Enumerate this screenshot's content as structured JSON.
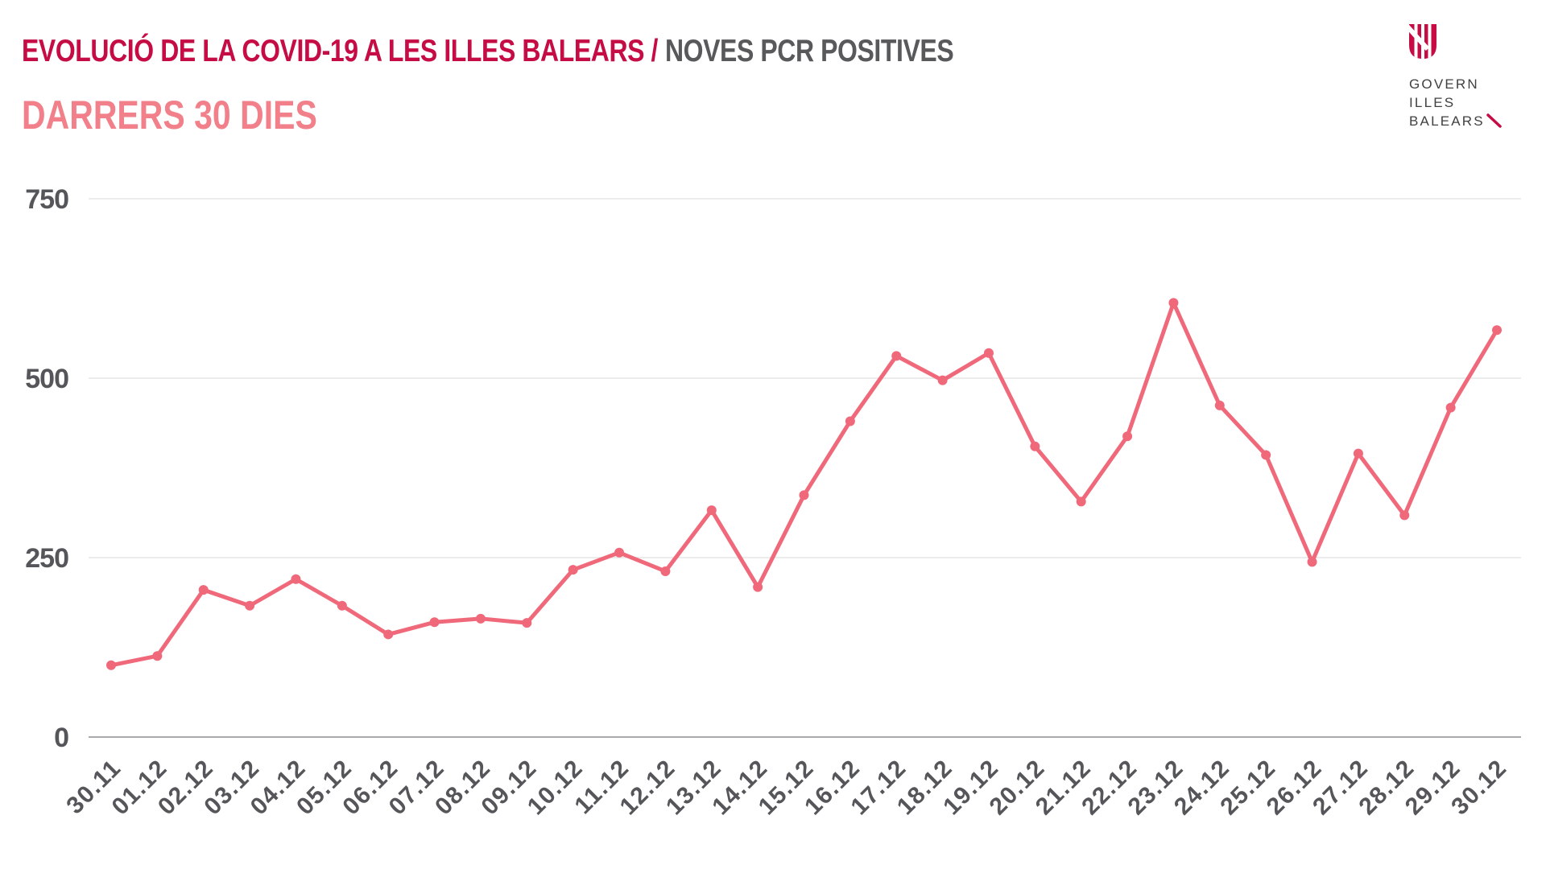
{
  "header": {
    "title_primary": "EVOLUCIÓ DE LA COVID-19 A LES ILLES BALEARS /",
    "title_secondary": "NOVES PCR POSITIVES",
    "subtitle": "DARRERS 30 DIES"
  },
  "logo": {
    "lines": [
      "GOVERN",
      "ILLES",
      "BALEARS"
    ],
    "icon": "balearic-shield-icon"
  },
  "colors": {
    "crimson": "#C50C45",
    "salmon_subtitle": "#F2808B",
    "line_salmon": "#F0697B",
    "gray_text": "#58595B",
    "axis_text": "#55565A",
    "gridline": "#E6E6E6",
    "zero_line": "#A8AAAD",
    "logo_text": "#414042"
  },
  "chart_data": {
    "type": "line",
    "title": "EVOLUCIÓ DE LA COVID-19 A LES ILLES BALEARS / NOVES PCR POSITIVES — DARRERS 30 DIES",
    "xlabel": "",
    "ylabel": "",
    "ylim": [
      0,
      750
    ],
    "yticks": [
      0,
      250,
      500,
      750
    ],
    "grid": true,
    "legend": false,
    "marker": "circle",
    "categories": [
      "30.11",
      "01.12",
      "02.12",
      "03.12",
      "04.12",
      "05.12",
      "06.12",
      "07.12",
      "08.12",
      "09.12",
      "10.12",
      "11.12",
      "12.12",
      "13.12",
      "14.12",
      "15.12",
      "16.12",
      "17.12",
      "18.12",
      "19.12",
      "20.12",
      "21.12",
      "22.12",
      "23.12",
      "24.12",
      "25.12",
      "26.12",
      "27.12",
      "28.12",
      "29.12",
      "30.12"
    ],
    "values": [
      100,
      113,
      205,
      183,
      220,
      183,
      143,
      160,
      165,
      159,
      233,
      257,
      231,
      316,
      209,
      337,
      440,
      531,
      497,
      535,
      405,
      328,
      419,
      605,
      462,
      393,
      244,
      395,
      309,
      459,
      567
    ]
  }
}
